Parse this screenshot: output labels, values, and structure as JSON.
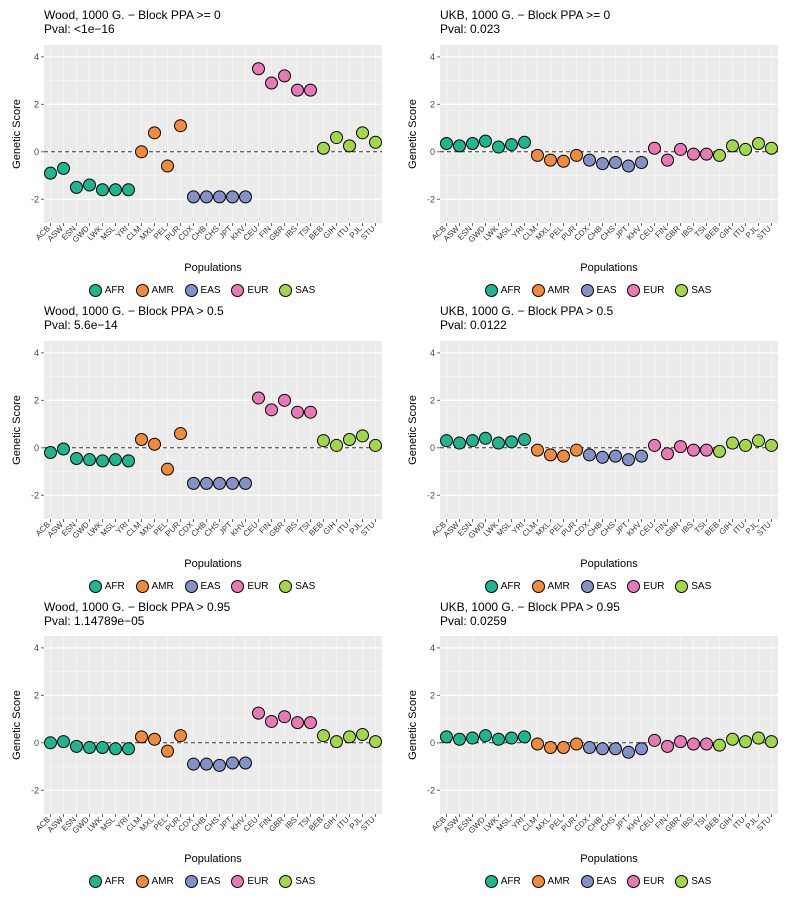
{
  "layout": {
    "rows": 3,
    "cols": 2
  },
  "axis": {
    "ylabel": "Genetic Score",
    "xlabel": "Populations",
    "ylim": [
      -3,
      4.5
    ],
    "yticks": [
      -2,
      0,
      2,
      4
    ],
    "label_fontsize": 11,
    "tick_fontsize": 9,
    "xtick_fontsize": 8
  },
  "style": {
    "panel_bg": "#ebebeb",
    "grid_major_color": "#ffffff",
    "grid_minor_color": "#f4f4f4",
    "zero_line_color": "#333333",
    "zero_line_dash": "4,3",
    "marker_radius": 6,
    "marker_stroke": "#000000",
    "marker_stroke_width": 1
  },
  "categories": [
    "ACB",
    "ASW",
    "ESN",
    "GWD",
    "LWK",
    "MSL",
    "YRI",
    "CLM",
    "MXL",
    "PEL",
    "PUR",
    "CDX",
    "CHB",
    "CHS",
    "JPT",
    "KHV",
    "CEU",
    "FIN",
    "GBR",
    "IBS",
    "TSI",
    "BEB",
    "GIH",
    "ITU",
    "PJL",
    "STU"
  ],
  "category_group": [
    "AFR",
    "AFR",
    "AFR",
    "AFR",
    "AFR",
    "AFR",
    "AFR",
    "AMR",
    "AMR",
    "AMR",
    "AMR",
    "EAS",
    "EAS",
    "EAS",
    "EAS",
    "EAS",
    "EUR",
    "EUR",
    "EUR",
    "EUR",
    "EUR",
    "SAS",
    "SAS",
    "SAS",
    "SAS",
    "SAS"
  ],
  "group_colors": {
    "AFR": "#1fb58f",
    "AMR": "#f08b3c",
    "EAS": "#8391c6",
    "EUR": "#e879b5",
    "SAS": "#a4d64a"
  },
  "legend_order": [
    "AFR",
    "AMR",
    "EAS",
    "EUR",
    "SAS"
  ],
  "panels": [
    {
      "title_line1": "Wood, 1000 G. − Block PPA >= 0",
      "title_line2": "Pval:  <1e−16",
      "values": [
        -0.9,
        -0.7,
        -1.5,
        -1.4,
        -1.6,
        -1.6,
        -1.6,
        0.0,
        0.8,
        -0.6,
        1.1,
        -1.9,
        -1.9,
        -1.9,
        -1.9,
        -1.9,
        3.5,
        2.9,
        3.2,
        2.6,
        2.6,
        0.15,
        0.6,
        0.25,
        0.8,
        0.4
      ]
    },
    {
      "title_line1": "UKB, 1000 G. − Block PPA >= 0",
      "title_line2": "Pval:  0.023",
      "values": [
        0.35,
        0.25,
        0.35,
        0.45,
        0.2,
        0.3,
        0.4,
        -0.15,
        -0.35,
        -0.4,
        -0.15,
        -0.35,
        -0.5,
        -0.45,
        -0.6,
        -0.45,
        0.15,
        -0.35,
        0.1,
        -0.1,
        -0.1,
        -0.15,
        0.25,
        0.1,
        0.35,
        0.15
      ]
    },
    {
      "title_line1": "Wood, 1000 G. − Block PPA > 0.5",
      "title_line2": "Pval:  5.6e−14",
      "values": [
        -0.2,
        -0.05,
        -0.45,
        -0.5,
        -0.55,
        -0.5,
        -0.55,
        0.35,
        0.15,
        -0.9,
        0.6,
        -1.5,
        -1.5,
        -1.5,
        -1.5,
        -1.5,
        2.1,
        1.6,
        2.0,
        1.5,
        1.5,
        0.3,
        0.1,
        0.35,
        0.5,
        0.1
      ]
    },
    {
      "title_line1": "UKB, 1000 G. − Block PPA > 0.5",
      "title_line2": "Pval:  0.0122",
      "values": [
        0.3,
        0.2,
        0.3,
        0.4,
        0.2,
        0.25,
        0.35,
        -0.1,
        -0.3,
        -0.35,
        -0.1,
        -0.3,
        -0.4,
        -0.35,
        -0.5,
        -0.35,
        0.1,
        -0.25,
        0.05,
        -0.1,
        -0.1,
        -0.15,
        0.2,
        0.1,
        0.3,
        0.1
      ]
    },
    {
      "title_line1": "Wood, 1000 G. − Block PPA > 0.95",
      "title_line2": "Pval:  1.14789e−05",
      "values": [
        0.0,
        0.05,
        -0.15,
        -0.2,
        -0.2,
        -0.25,
        -0.25,
        0.25,
        0.15,
        -0.35,
        0.3,
        -0.9,
        -0.9,
        -0.95,
        -0.85,
        -0.85,
        1.25,
        0.9,
        1.1,
        0.85,
        0.85,
        0.3,
        0.05,
        0.25,
        0.35,
        0.05
      ]
    },
    {
      "title_line1": "UKB, 1000 G. − Block PPA > 0.95",
      "title_line2": "Pval:  0.0259",
      "values": [
        0.25,
        0.15,
        0.2,
        0.3,
        0.15,
        0.2,
        0.25,
        -0.05,
        -0.2,
        -0.2,
        -0.05,
        -0.2,
        -0.25,
        -0.25,
        -0.4,
        -0.25,
        0.1,
        -0.15,
        0.05,
        -0.05,
        -0.05,
        -0.1,
        0.15,
        0.05,
        0.2,
        0.05
      ]
    }
  ]
}
